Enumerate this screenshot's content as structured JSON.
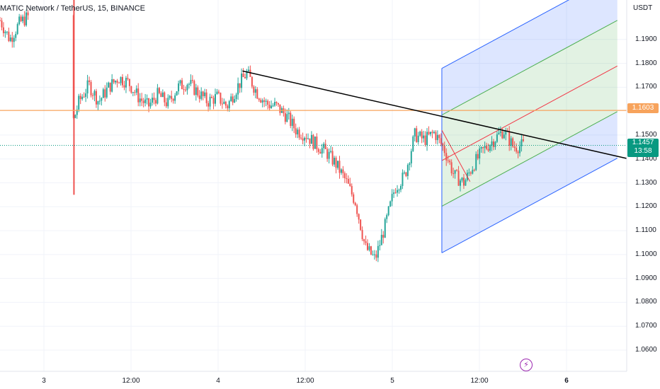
{
  "header": {
    "symbol_title": "MATIC Network / TetherUS, 15, BINANCE",
    "currency": "USDT"
  },
  "price_axis": {
    "ticks": [
      "1.1900",
      "1.1800",
      "1.1700",
      "1.1500",
      "1.1400",
      "1.1300",
      "1.1200",
      "1.1100",
      "1.1000",
      "1.0900",
      "1.0800",
      "1.0700",
      "1.0600"
    ]
  },
  "time_axis": {
    "ticks": [
      {
        "label": "3",
        "bold": false
      },
      {
        "label": "12:00",
        "bold": false
      },
      {
        "label": "4",
        "bold": false
      },
      {
        "label": "12:00",
        "bold": false
      },
      {
        "label": "5",
        "bold": false
      },
      {
        "label": "12:00",
        "bold": false
      },
      {
        "label": "6",
        "bold": true
      }
    ]
  },
  "badges": {
    "horizontal_level": "1.1603",
    "last_price": "1.1457",
    "countdown": "13:58"
  },
  "colors": {
    "up": "#26a69a",
    "down": "#ef5350",
    "horizontal_level": "#f7a35c",
    "last_price": "#089981",
    "trendline": "#000000",
    "channel_outer": "#2962ff",
    "channel_mid": "#4caf50",
    "channel_center": "#f23645",
    "event_icon": "#9c27b0"
  },
  "icons": {
    "event_marker": "lightning-bolt-icon"
  },
  "chart_data": {
    "type": "candlestick",
    "title": "MATIC Network / TetherUS, 15, BINANCE",
    "interval": "15",
    "y_unit": "USDT",
    "ylim": [
      1.053,
      1.207
    ],
    "x_labels": [
      "3",
      "12:00",
      "4",
      "12:00",
      "5",
      "12:00",
      "6"
    ],
    "close_path": [
      1.198,
      1.19,
      1.197,
      1.2,
      1.197,
      1.18,
      1.145,
      1.15,
      1.164,
      1.171,
      1.164,
      1.17,
      1.174,
      1.172,
      1.166,
      1.162,
      1.167,
      1.163,
      1.17,
      1.172,
      1.168,
      1.164,
      1.166,
      1.162,
      1.17,
      1.176,
      1.168,
      1.163,
      1.162,
      1.158,
      1.152,
      1.15,
      1.146,
      1.143,
      1.138,
      1.131,
      1.122,
      1.103,
      1.098,
      1.112,
      1.128,
      1.133,
      1.15,
      1.148,
      1.151,
      1.144,
      1.133,
      1.13,
      1.138,
      1.144,
      1.148,
      1.152,
      1.145,
      1.1457
    ],
    "horizontal_levels": [
      {
        "price": 1.1603,
        "label": "1.1603"
      }
    ],
    "last_price": {
      "price": 1.1457,
      "label": "1.1457",
      "countdown": "13:58"
    },
    "drawings": {
      "trendline": [
        {
          "t": 0.387,
          "price": 1.1768
        },
        {
          "t": 1.0,
          "price": 1.1402
        }
      ],
      "regression_channel": {
        "start": {
          "t": 0.705,
          "center": 1.1393
        },
        "end": {
          "t": 0.985,
          "center": 1.1789
        },
        "inner_offset": 0.0191,
        "outer_offset": 0.0386
      },
      "regression_segment": [
        {
          "t": 0.705,
          "price": 1.152
        },
        {
          "t": 0.75,
          "price": 1.1305
        }
      ],
      "notes": "t is the fraction of the visible time range (0 = left edge, 1 = right edge of the plot)"
    }
  }
}
